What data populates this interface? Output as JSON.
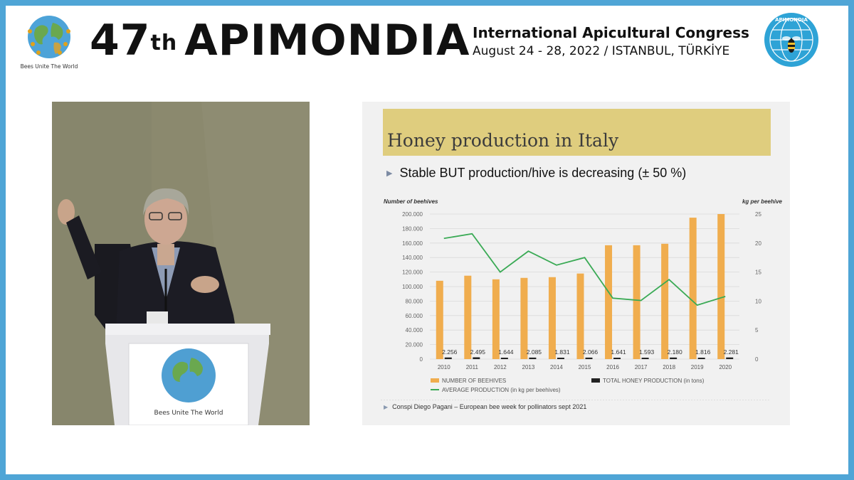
{
  "header": {
    "title_main": "47",
    "title_sup": "th",
    "title_word": "APIMONDIA",
    "subtitle": "International Apicultural Congress",
    "dates": "August 24 - 28, 2022 / ISTANBUL, TÜRKİYE",
    "left_logo_text": "Bees Unite The World",
    "right_logo_text": "APIMONDIA"
  },
  "lectern": {
    "logo_text": "Bees Unite The World"
  },
  "slide": {
    "title": "Honey production in Italy",
    "bullet": "Stable BUT production/hive is decreasing (± 50 %)",
    "footnote": "Conspi Diego Pagani – European bee week for pollinators sept 2021"
  },
  "chart_data": {
    "type": "bar",
    "categories": [
      "2010",
      "2011",
      "2012",
      "2013",
      "2014",
      "2015",
      "2016",
      "2017",
      "2018",
      "2019",
      "2020"
    ],
    "y_left_label": "Number of beehives",
    "y_right_label": "kg per beehive",
    "y_left_ticks": [
      "0",
      "20.000",
      "40.000",
      "60.000",
      "80.000",
      "100.000",
      "120.000",
      "140.000",
      "160.000",
      "180.000",
      "200.000"
    ],
    "y_right_ticks": [
      "0",
      "5",
      "10",
      "15",
      "20",
      "25"
    ],
    "ylim_left": [
      0,
      200000
    ],
    "ylim_right": [
      0,
      25
    ],
    "grid": true,
    "legend_position": "bottom",
    "series": [
      {
        "name": "NUMBER OF BEEHIVES",
        "axis": "left",
        "kind": "bar",
        "color": "#f0ad4e",
        "values": [
          108000,
          115000,
          110000,
          112000,
          113000,
          118000,
          157000,
          157000,
          159000,
          195000,
          200000
        ]
      },
      {
        "name": "TOTAL HONEY PRODUCTION (in tons)",
        "axis": "left",
        "kind": "bar",
        "color": "#222222",
        "values": [
          2256,
          2495,
          1644,
          2085,
          1831,
          2066,
          1641,
          1593,
          2180,
          1816,
          2281
        ],
        "data_labels": [
          "2.256",
          "2.495",
          "1.644",
          "2.085",
          "1.831",
          "2.066",
          "1.641",
          "1.593",
          "2.180",
          "1.816",
          "2.281"
        ]
      },
      {
        "name": "AVERAGE PRODUCTION (in kg per beehives)",
        "axis": "right",
        "kind": "line",
        "color": "#3aaa55",
        "values": [
          20.8,
          21.6,
          15.0,
          18.6,
          16.2,
          17.5,
          10.5,
          10.1,
          13.7,
          9.3,
          10.8
        ]
      }
    ]
  }
}
